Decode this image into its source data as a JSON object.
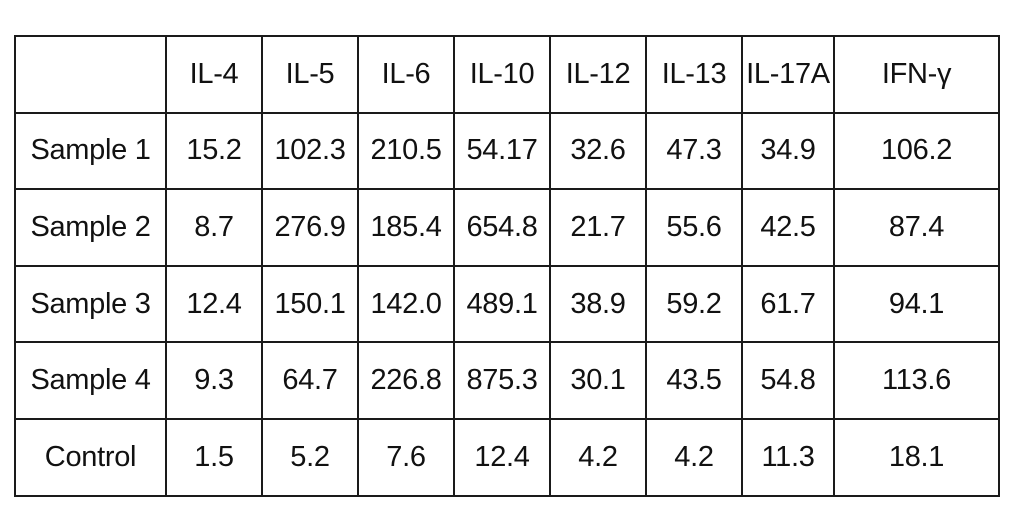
{
  "table": {
    "corner": "",
    "headers": [
      "IL-4",
      "IL-5",
      "IL-6",
      "IL-10",
      "IL-12",
      "IL-13",
      "IL-17A",
      "IFN-γ"
    ],
    "rows": [
      {
        "label": "Sample 1",
        "values": [
          "15.2",
          "102.3",
          "210.5",
          "54.17",
          "32.6",
          "47.3",
          "34.9",
          "106.2"
        ]
      },
      {
        "label": "Sample 2",
        "values": [
          "8.7",
          "276.9",
          "185.4",
          "654.8",
          "21.7",
          "55.6",
          "42.5",
          "87.4"
        ]
      },
      {
        "label": "Sample 3",
        "values": [
          "12.4",
          "150.1",
          "142.0",
          "489.1",
          "38.9",
          "59.2",
          "61.7",
          "94.1"
        ]
      },
      {
        "label": "Sample 4",
        "values": [
          "9.3",
          "64.7",
          "226.8",
          "875.3",
          "30.1",
          "43.5",
          "54.8",
          "113.6"
        ]
      },
      {
        "label": "Control",
        "values": [
          "1.5",
          "5.2",
          "7.6",
          "12.4",
          "4.2",
          "4.2",
          "11.3",
          "18.1"
        ]
      }
    ]
  }
}
